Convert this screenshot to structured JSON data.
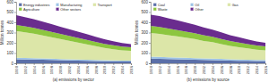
{
  "chart_data": [
    {
      "type": "area",
      "stacked": true,
      "legend": "top",
      "grid": false,
      "y_label": "Million tonnes",
      "x_label": "(a) emissions by sector",
      "x": [
        1990,
        1992,
        1994,
        1996,
        1998,
        2000,
        2002,
        2004,
        2006,
        2008,
        2010,
        2012,
        2014,
        2016
      ],
      "xlim": [
        1990,
        2016
      ],
      "xticks": [
        1990,
        1992,
        1994,
        1996,
        1998,
        2000,
        2002,
        2004,
        2006,
        2008,
        2010,
        2012,
        2014,
        2016
      ],
      "ylim": [
        0,
        600
      ],
      "yticks": [
        0,
        100,
        200,
        300,
        400,
        500,
        600
      ],
      "series": [
        {
          "name": "Energy industries",
          "color": "#5b6fa8",
          "values": [
            40,
            38,
            36,
            34,
            32,
            30,
            28,
            26,
            24,
            22,
            20,
            19,
            18,
            17
          ]
        },
        {
          "name": "Manufacturing",
          "color": "#9dc3e6",
          "values": [
            15,
            14,
            14,
            13,
            13,
            12,
            12,
            11,
            11,
            10,
            10,
            9,
            9,
            9
          ]
        },
        {
          "name": "Transport",
          "color": "#dce6a8",
          "values": [
            260,
            250,
            240,
            225,
            210,
            195,
            180,
            165,
            150,
            135,
            120,
            110,
            100,
            95
          ]
        },
        {
          "name": "Agriculture",
          "color": "#8dc63f",
          "values": [
            60,
            58,
            56,
            54,
            52,
            50,
            48,
            46,
            44,
            42,
            40,
            38,
            36,
            35
          ]
        },
        {
          "name": "Other sectors",
          "color": "#6a2c8e",
          "values": [
            95,
            90,
            85,
            80,
            75,
            70,
            65,
            60,
            55,
            50,
            45,
            40,
            35,
            30
          ]
        }
      ]
    },
    {
      "type": "area",
      "stacked": true,
      "legend": "top",
      "grid": false,
      "y_label": "Million tonnes",
      "x_label": "(b) emissions by source",
      "x": [
        1990,
        1992,
        1994,
        1996,
        1998,
        2000,
        2002,
        2004,
        2006,
        2008,
        2010,
        2012,
        2014,
        2016
      ],
      "xlim": [
        1990,
        2016
      ],
      "xticks": [
        1990,
        1992,
        1994,
        1996,
        1998,
        2000,
        2002,
        2004,
        2006,
        2008,
        2010,
        2012,
        2014,
        2016
      ],
      "ylim": [
        0,
        600
      ],
      "yticks": [
        0,
        100,
        200,
        300,
        400,
        500,
        600
      ],
      "series": [
        {
          "name": "Coal",
          "color": "#5b6fa8",
          "values": [
            45,
            43,
            41,
            39,
            37,
            35,
            33,
            31,
            29,
            27,
            25,
            23,
            22,
            21
          ]
        },
        {
          "name": "Oil",
          "color": "#9dc3e6",
          "values": [
            20,
            19,
            18,
            18,
            17,
            16,
            15,
            15,
            14,
            13,
            12,
            12,
            11,
            11
          ]
        },
        {
          "name": "Gas",
          "color": "#dce6a8",
          "values": [
            230,
            225,
            215,
            205,
            195,
            185,
            170,
            160,
            145,
            130,
            120,
            110,
            100,
            95
          ]
        },
        {
          "name": "Waste",
          "color": "#8dc63f",
          "values": [
            70,
            68,
            66,
            63,
            60,
            58,
            55,
            52,
            50,
            47,
            45,
            42,
            40,
            38
          ]
        },
        {
          "name": "Other",
          "color": "#6a2c8e",
          "values": [
            110,
            105,
            100,
            95,
            88,
            82,
            76,
            70,
            64,
            58,
            52,
            46,
            40,
            35
          ]
        }
      ]
    }
  ]
}
